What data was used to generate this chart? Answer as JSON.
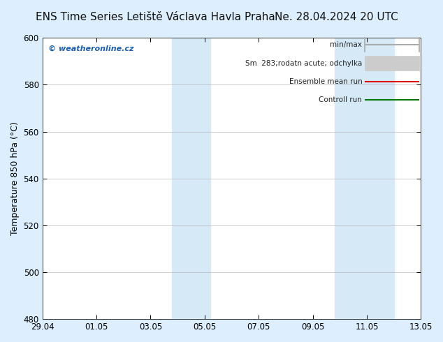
{
  "title_left": "ENS Time Series Letiště Václava Havla Praha",
  "title_right": "Ne. 28.04.2024 20 UTC",
  "ylabel": "Temperature 850 hPa (°C)",
  "watermark": "© weatheronline.cz",
  "watermark_color": "#1a5fb4",
  "ylim": [
    480,
    600
  ],
  "yticks": [
    480,
    500,
    520,
    540,
    560,
    580,
    600
  ],
  "x_tick_labels": [
    "29.04",
    "01.05",
    "03.05",
    "05.05",
    "07.05",
    "09.05",
    "11.05",
    "13.05"
  ],
  "x_tick_positions": [
    0,
    2,
    4,
    6,
    8,
    10,
    12,
    14
  ],
  "shaded_regions": [
    {
      "x_start": 4.8,
      "x_end": 6.2,
      "color": "#d5e9f7"
    },
    {
      "x_start": 10.8,
      "x_end": 13.0,
      "color": "#d5e9f7"
    }
  ],
  "background_color": "#ddeeff",
  "plot_bg_color": "#ffffff",
  "legend_labels": [
    "min/max",
    "Sm  283;rodatn acute; odchylka",
    "Ensemble mean run",
    "Controll run"
  ],
  "legend_line_colors": [
    "#aaaaaa",
    "#cccccc",
    "#dd0000",
    "#007700"
  ],
  "title_fontsize": 11,
  "tick_fontsize": 8.5,
  "ylabel_fontsize": 9,
  "grid_color": "#bbbbbb",
  "border_color": "#333333"
}
